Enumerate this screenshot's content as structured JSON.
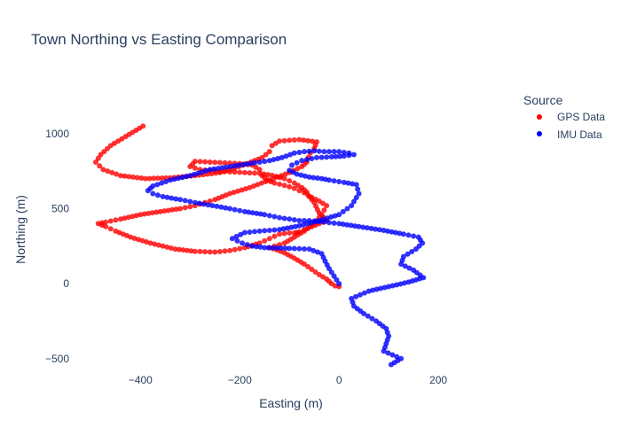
{
  "chart_data": {
    "type": "scatter",
    "title": "Town Northing vs Easting Comparison",
    "xlabel": "Easting (m)",
    "ylabel": "Northing (m)",
    "xlim": [
      -540,
      350
    ],
    "ylim": [
      -590,
      1300
    ],
    "x_ticks": [
      -400,
      -200,
      0,
      200
    ],
    "y_ticks": [
      -500,
      0,
      500,
      1000
    ],
    "grid": false,
    "legend": {
      "title": "Source",
      "placement": "top-right",
      "entries": [
        "GPS Data",
        "IMU Data"
      ]
    },
    "series": [
      {
        "name": "GPS Data",
        "color": "#ff0000",
        "x": [
          0,
          -8,
          -15,
          -25,
          -40,
          -55,
          -70,
          -90,
          -110,
          -125,
          -140,
          -130,
          -110,
          -90,
          -70,
          -50,
          -35,
          -25,
          -40,
          -55,
          -70,
          -90,
          -110,
          -130,
          -145,
          -155,
          -160,
          -175,
          -200,
          -230,
          -260,
          -290,
          -300,
          -280,
          -250,
          -220,
          -190,
          -160,
          -135,
          -110,
          -90,
          -75,
          -65,
          -60,
          -50,
          -40,
          -25,
          -40,
          -55,
          -70,
          -80,
          -85,
          -90,
          -100,
          -120,
          -140,
          -160,
          -190,
          -220,
          -250,
          -290,
          -330,
          -380,
          -420,
          -450,
          -470,
          -485,
          -470,
          -440,
          -400,
          -360,
          -320,
          -290,
          -270,
          -250,
          -220,
          -180,
          -140,
          -100,
          -75,
          -65,
          -62,
          -58,
          -50,
          -45,
          -80,
          -120,
          -135,
          -140,
          -155,
          -185,
          -210,
          -240,
          -290,
          -340,
          -390,
          -440,
          -475,
          -490,
          -480,
          -460,
          -430,
          -395
        ],
        "y": [
          -20,
          -15,
          0,
          30,
          60,
          95,
          130,
          170,
          205,
          225,
          240,
          250,
          270,
          310,
          350,
          400,
          460,
          520,
          550,
          575,
          605,
          635,
          655,
          670,
          690,
          720,
          760,
          790,
          800,
          805,
          810,
          815,
          780,
          760,
          750,
          745,
          740,
          735,
          722,
          700,
          670,
          640,
          610,
          580,
          540,
          470,
          420,
          400,
          380,
          360,
          345,
          340,
          338,
          338,
          330,
          300,
          270,
          240,
          220,
          210,
          215,
          230,
          270,
          310,
          350,
          380,
          400,
          410,
          430,
          460,
          480,
          500,
          520,
          540,
          560,
          600,
          640,
          690,
          740,
          780,
          810,
          840,
          870,
          900,
          945,
          960,
          950,
          920,
          880,
          840,
          800,
          770,
          740,
          720,
          705,
          700,
          720,
          760,
          810,
          860,
          920,
          980,
          1050
        ]
      },
      {
        "name": "IMU Data",
        "color": "#0000ff",
        "x": [
          0,
          -10,
          -20,
          -28,
          -35,
          -60,
          -100,
          -150,
          -175,
          -195,
          -215,
          -190,
          -160,
          -120,
          -80,
          -40,
          0,
          25,
          40,
          35,
          10,
          -20,
          -35,
          -60,
          -85,
          -100,
          -95,
          -75,
          -45,
          -15,
          10,
          30,
          20,
          0,
          -30,
          -50,
          -70,
          -90,
          -115,
          -140,
          -170,
          -210,
          -260,
          -300,
          -340,
          -375,
          -385,
          -375,
          -355,
          -320,
          -290,
          -255,
          -220,
          -190,
          -150,
          -120,
          -100,
          -80,
          -60,
          -30,
          0,
          40,
          90,
          130,
          160,
          168,
          155,
          130,
          125,
          150,
          170,
          140,
          100,
          60,
          25,
          30,
          50,
          75,
          95,
          100,
          95,
          90,
          125,
          105
        ],
        "y": [
          0,
          50,
          100,
          150,
          200,
          230,
          235,
          240,
          250,
          270,
          300,
          340,
          350,
          360,
          385,
          420,
          460,
          520,
          600,
          660,
          675,
          690,
          700,
          710,
          730,
          755,
          790,
          820,
          840,
          845,
          850,
          860,
          870,
          880,
          880,
          885,
          880,
          870,
          840,
          820,
          805,
          785,
          760,
          720,
          690,
          650,
          620,
          600,
          580,
          560,
          540,
          520,
          500,
          480,
          460,
          440,
          430,
          420,
          420,
          410,
          400,
          380,
          355,
          330,
          310,
          270,
          230,
          180,
          130,
          90,
          40,
          10,
          -20,
          -50,
          -100,
          -150,
          -200,
          -250,
          -300,
          -350,
          -400,
          -450,
          -500,
          -540
        ]
      }
    ]
  }
}
